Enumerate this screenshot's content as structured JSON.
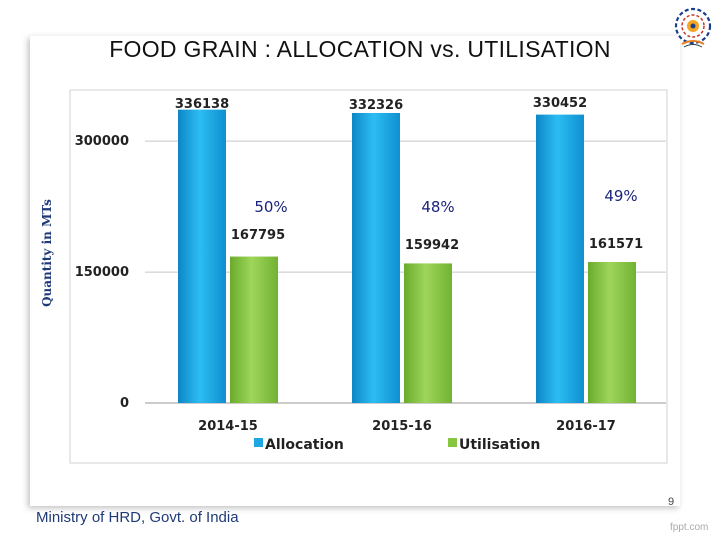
{
  "slide": {
    "title": "FOOD GRAIN : ALLOCATION vs. UTILISATION",
    "footer": "Ministry of HRD, Govt. of India",
    "page_number": "9",
    "watermark": "fppt.com",
    "logo_icon": "mhrd-emblem-icon"
  },
  "chart_data": {
    "type": "bar",
    "ylabel": "Quantity in MTs",
    "xlabel": "",
    "ylim": [
      0,
      330000
    ],
    "y_ticks": [
      0,
      150000,
      300000
    ],
    "categories": [
      "2014-15",
      "2015-16",
      "2016-17"
    ],
    "series": [
      {
        "name": "Allocation",
        "color": "#1ea7e1",
        "values": [
          336138,
          332326,
          330452
        ]
      },
      {
        "name": "Utilisation",
        "color": "#86c640",
        "values": [
          167795,
          159942,
          161571
        ]
      }
    ],
    "annotations": [
      "50%",
      "48%",
      "49%"
    ],
    "legend": "bottom",
    "grid": false
  }
}
